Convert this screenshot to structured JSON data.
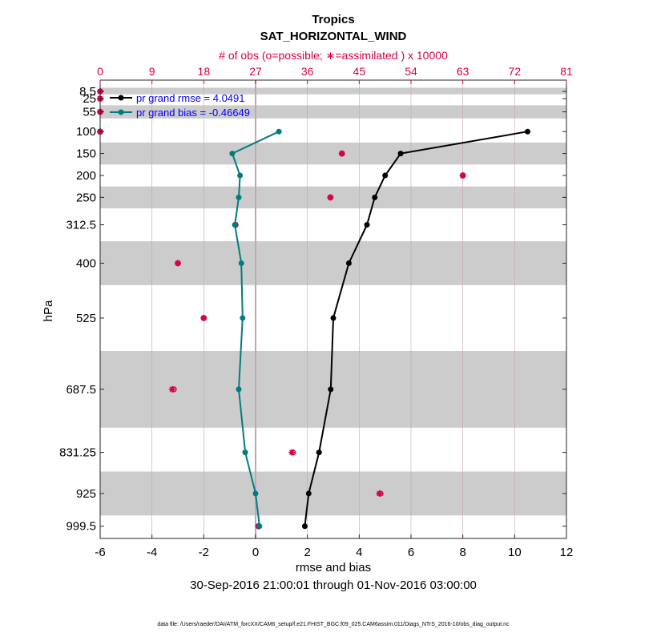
{
  "chart_data": {
    "type": "line",
    "title": "Tropics",
    "subtitle": "SAT_HORIZONTAL_WIND",
    "top_axis_label": "# of obs (o=possible; ∗=assimilated ) x 10000",
    "xlabel": "rmse and bias",
    "ylabel": "hPa",
    "date_range": "30-Sep-2016 21:00:01 through 01-Nov-2016 03:00:00",
    "footer": "data file: /Users/raeder/DAI/ATM_forcXX/CAM6_setup/f.e21.FHIST_BGC.f09_025.CAM6assim.011/Diags_NTrS_2016-10/obs_diag_output.nc",
    "xlim": [
      -6,
      12
    ],
    "xticks": [
      "-6",
      "-4",
      "-2",
      "0",
      "2",
      "4",
      "6",
      "8",
      "10",
      "12"
    ],
    "top_xlim": [
      0,
      81
    ],
    "top_xticks": [
      "0",
      "9",
      "18",
      "27",
      "36",
      "45",
      "54",
      "63",
      "72",
      "81"
    ],
    "levels": [
      8.5,
      25,
      55,
      100,
      150,
      200,
      250,
      312.5,
      400,
      525,
      687.5,
      831.25,
      925,
      999.5
    ],
    "level_labels": [
      "8.5",
      "25",
      "55",
      "100",
      "150",
      "200",
      "250",
      "312.5",
      "400",
      "525",
      "687.5",
      "831.25",
      "925",
      "999.5"
    ],
    "shaded_bands": [
      [
        0,
        15
      ],
      [
        40,
        70
      ],
      [
        125,
        175
      ],
      [
        225,
        275
      ],
      [
        350,
        450
      ],
      [
        600,
        775
      ],
      [
        875,
        975
      ]
    ],
    "series": [
      {
        "name": "pr grand rmse = 4.0491",
        "color": "#000000",
        "levels": [
          100,
          150,
          200,
          250,
          312.5,
          400,
          525,
          687.5,
          831.25,
          925,
          999.5
        ],
        "values": [
          10.5,
          5.6,
          5.0,
          4.6,
          4.3,
          3.6,
          3.0,
          2.9,
          2.45,
          2.05,
          1.9
        ]
      },
      {
        "name": "pr grand bias = -0.46649",
        "color": "#007c80",
        "levels": [
          100,
          150,
          200,
          250,
          312.5,
          400,
          525,
          687.5,
          831.25,
          925,
          999.5
        ],
        "values": [
          0.9,
          -0.9,
          -0.6,
          -0.65,
          -0.8,
          -0.55,
          -0.5,
          -0.65,
          -0.4,
          0.0,
          0.15
        ]
      }
    ],
    "obs_counts": {
      "color": "#d6004f",
      "levels": [
        8.5,
        25,
        55,
        100,
        150,
        200,
        250,
        312.5,
        400,
        525,
        687.5,
        831.25,
        925,
        999.5
      ],
      "possible": [
        0,
        0,
        0,
        0,
        42,
        63,
        40,
        23.5,
        13.5,
        18,
        12.8,
        33.5,
        48.7,
        27.5
      ],
      "assimilated": [
        0,
        0,
        0,
        0,
        42,
        63,
        40,
        23.5,
        13.5,
        18,
        12.5,
        33.3,
        48.5,
        27.5
      ]
    },
    "legend_position": "top-left",
    "grid": true
  }
}
